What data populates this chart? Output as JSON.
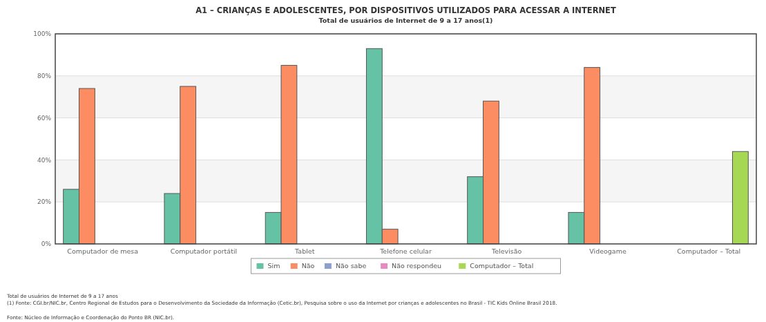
{
  "chart_data": {
    "type": "bar",
    "title": "A1 – CRIANÇAS E ADOLESCENTES, POR DISPOSITIVOS UTILIZADOS PARA ACESSAR A INTERNET",
    "subtitle": "Total de usuários de Internet de 9 a 17 anos(1)",
    "categories": [
      "Computador de mesa",
      "Computador portátil",
      "Tablet",
      "Telefone celular",
      "Televisão",
      "Videogame",
      "Computador – Total"
    ],
    "series": [
      {
        "name": "Sim",
        "color": "#66c2a5",
        "values": [
          26,
          24,
          15,
          93,
          32,
          15,
          null
        ]
      },
      {
        "name": "Não",
        "color": "#fc8d62",
        "values": [
          74,
          75,
          85,
          7,
          68,
          84,
          null
        ]
      },
      {
        "name": "Não sabe",
        "color": "#8da0cb",
        "values": [
          null,
          null,
          null,
          null,
          null,
          null,
          null
        ]
      },
      {
        "name": "Não respondeu",
        "color": "#e78ac3",
        "values": [
          null,
          null,
          null,
          null,
          null,
          null,
          null
        ]
      },
      {
        "name": "Computador – Total",
        "color": "#a6d854",
        "values": [
          null,
          null,
          null,
          null,
          null,
          null,
          44
        ]
      }
    ],
    "ylim": [
      0,
      100
    ],
    "yticks": [
      {
        "value": 0,
        "label": "0%"
      },
      {
        "value": 20,
        "label": "20%"
      },
      {
        "value": 40,
        "label": "40%"
      },
      {
        "value": 60,
        "label": "60%"
      },
      {
        "value": 80,
        "label": "80%"
      },
      {
        "value": 100,
        "label": "100%"
      }
    ],
    "grid": "y",
    "legend": "bottom",
    "annotations": [
      "Total de usuários de Internet de 9 a 17 anos",
      "(1) Fonte: CGI.br/NIC.br, Centro Regional de Estudos para o Desenvolvimento da Sociedade da Informação (Cetic.br), Pesquisa sobre o uso da Internet por crianças e adolescentes no Brasil - TIC Kids Online Brasil 2018.",
      "Fonte: Núcleo de Informação e Coordenação do Ponto BR (NIC.br)."
    ]
  }
}
